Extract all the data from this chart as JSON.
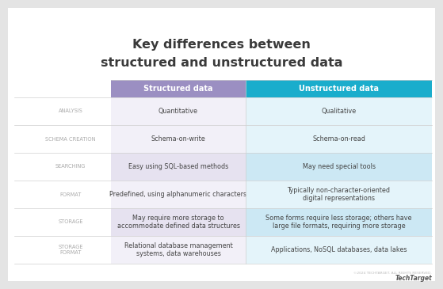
{
  "title_line1": "Key differences between",
  "title_line2": "structured and unstructured data",
  "col1_header": "Structured data",
  "col2_header": "Unstructured data",
  "col1_header_color": "#9b8fc2",
  "col2_header_color": "#1aadcc",
  "header_text_color": "#ffffff",
  "bg_color": "#e4e4e4",
  "table_bg": "#ffffff",
  "row_label_color": "#aaaaaa",
  "row_label_fontsize": 4.8,
  "cell_fontsize": 5.8,
  "title_color": "#3a3a3a",
  "title_fontsize": 11.5,
  "rows": [
    {
      "label": "ANALYSIS",
      "col1": "Quantitative",
      "col2": "Qualitative",
      "shaded": false
    },
    {
      "label": "SCHEMA CREATION",
      "col1": "Schema-on-write",
      "col2": "Schema-on-read",
      "shaded": false
    },
    {
      "label": "SEARCHING",
      "col1": "Easy using SQL-based methods",
      "col2": "May need special tools",
      "shaded": true
    },
    {
      "label": "FORMAT",
      "col1": "Predefined, using alphanumeric characters",
      "col2": "Typically non-character-oriented\ndigital representations",
      "shaded": false
    },
    {
      "label": "STORAGE",
      "col1": "May require more storage to\naccommodate defined data structures",
      "col2": "Some forms require less storage; others have\nlarge file formats, requiring more storage",
      "shaded": true
    },
    {
      "label": "STORAGE\nFORMAT",
      "col1": "Relational database management\nsystems, data warehouses",
      "col2": "Applications, NoSQL databases, data lakes",
      "shaded": false
    }
  ],
  "col1_shaded_color": "#e6e2f0",
  "col2_shaded_color": "#cce8f4",
  "col1_normal_color": "#f2f0f8",
  "col2_normal_color": "#e4f4fa",
  "footer_text": "©2024 TECHTARGET. ALL RIGHTS RESERVED.",
  "footer_color": "#bbbbbb"
}
